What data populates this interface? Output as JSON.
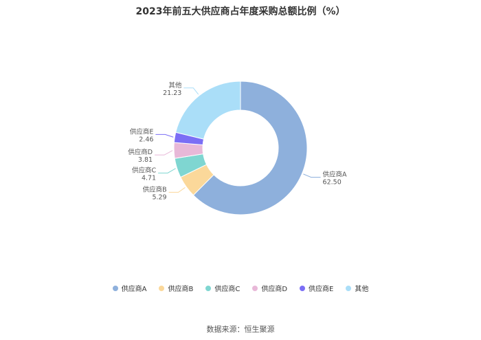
{
  "chart_data": {
    "type": "pie",
    "title": "2023年前五大供应商占年度采购总额比例（%）",
    "source": "数据来源：恒生聚源",
    "categories": [
      "供应商A",
      "供应商B",
      "供应商C",
      "供应商D",
      "供应商E",
      "其他"
    ],
    "values": [
      62.5,
      5.29,
      4.71,
      3.81,
      2.46,
      21.23
    ],
    "value_labels": [
      "62.50",
      "5.29",
      "4.71",
      "3.81",
      "2.46",
      "21.23"
    ],
    "colors": [
      "#8eb0dc",
      "#fbd89a",
      "#7fd6d1",
      "#e8b8d8",
      "#7b6ef5",
      "#aadef8"
    ],
    "legend_position": "bottom",
    "donut": true
  }
}
